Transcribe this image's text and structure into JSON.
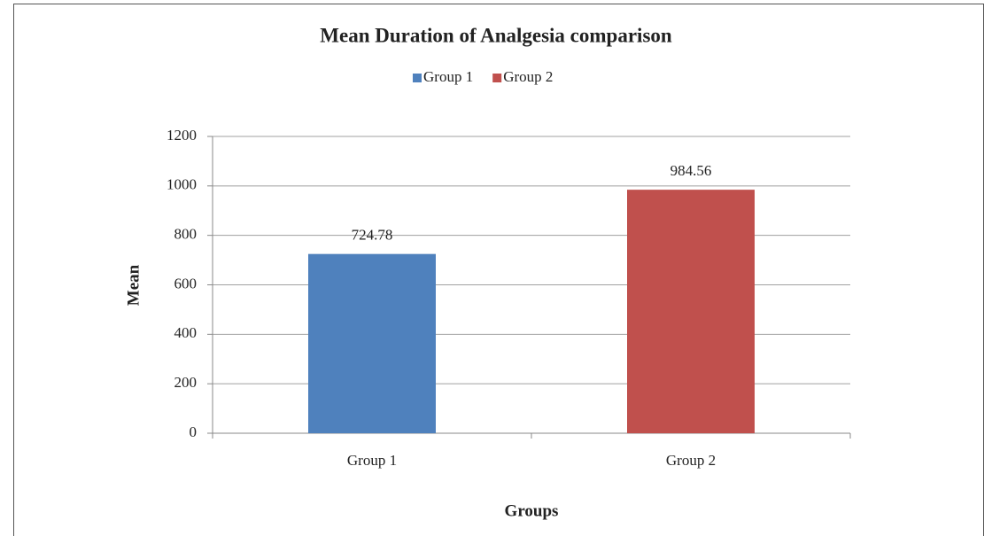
{
  "chart_data": {
    "type": "bar",
    "title": "Mean Duration of Analgesia comparison",
    "x_label": "Groups",
    "y_label": "Mean",
    "categories": [
      "Group 1",
      "Group 2"
    ],
    "series": [
      {
        "name": "Group 1",
        "color": "#4f81bd",
        "values": [
          724.78,
          null
        ]
      },
      {
        "name": "Group 2",
        "color": "#c0504d",
        "values": [
          null,
          984.56
        ]
      }
    ],
    "ylim": [
      0,
      1200
    ],
    "yticks": [
      0,
      200,
      400,
      600,
      800,
      1000,
      1200
    ],
    "grid": true,
    "legend": "top"
  }
}
